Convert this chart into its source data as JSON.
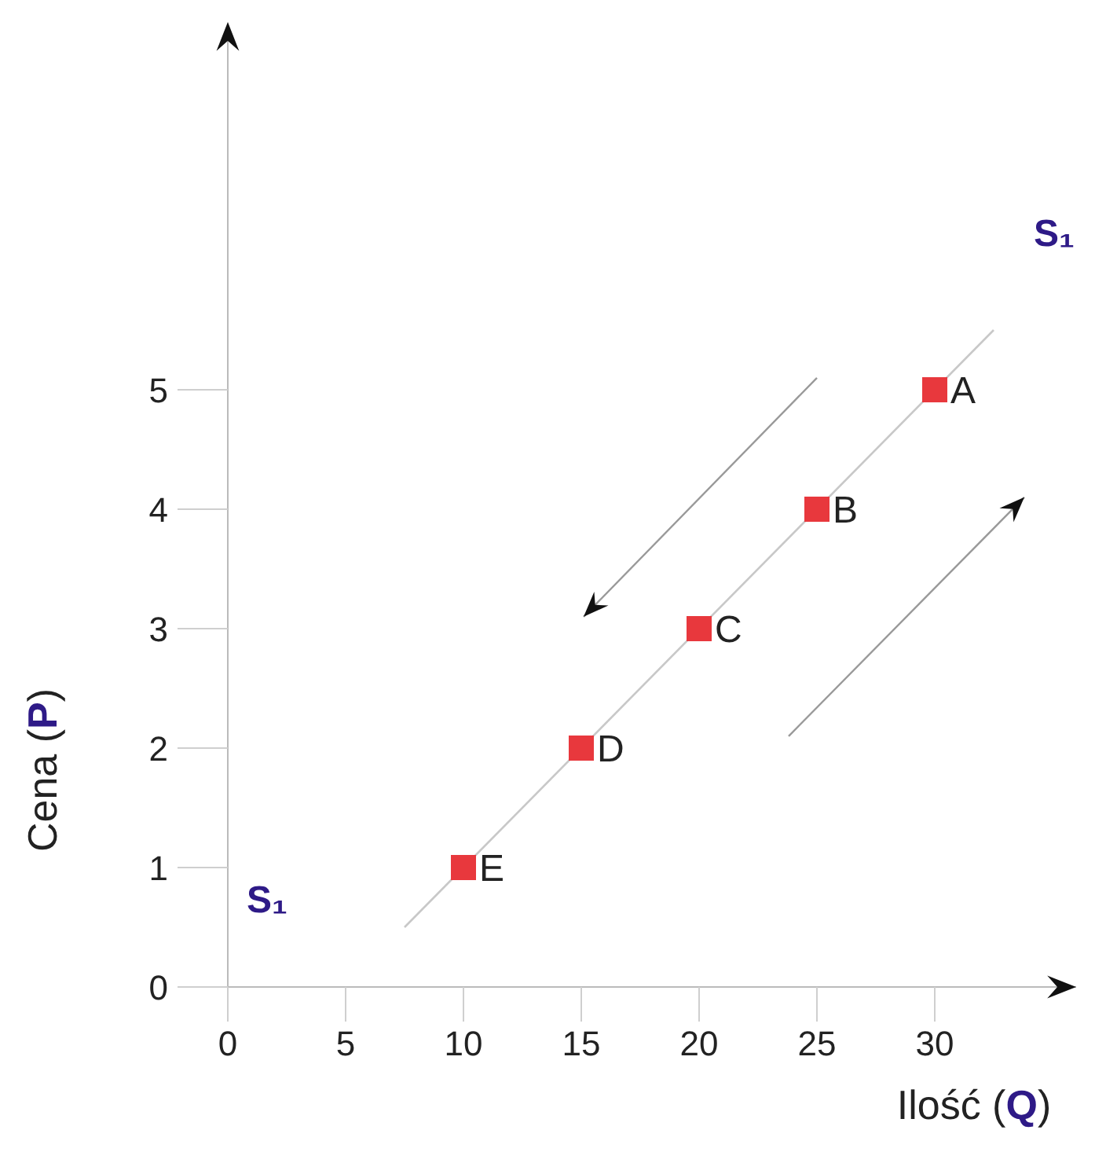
{
  "chart_data": {
    "type": "scatter",
    "xlabel": "Ilość (Q)",
    "ylabel": "Cena (P)",
    "xlim": [
      0,
      36
    ],
    "ylim": [
      0,
      8
    ],
    "xticks": [
      0,
      5,
      10,
      15,
      20,
      25,
      30
    ],
    "yticks": [
      0,
      1,
      2,
      3,
      4,
      5
    ],
    "grid": false,
    "marker": "square",
    "series": [
      {
        "type": "line",
        "color": "#c8c8c8",
        "x": [
          7.5,
          32.5
        ],
        "values": [
          0.5,
          5.5
        ],
        "marker": "none"
      },
      {
        "color": "#e8383d",
        "x": [
          30,
          25,
          20,
          15,
          10
        ],
        "values": [
          5,
          4,
          3,
          2,
          1
        ]
      }
    ],
    "annotations": [
      {
        "text": "A",
        "x": 30,
        "y": 5
      },
      {
        "text": "B",
        "x": 25,
        "y": 4
      },
      {
        "text": "C",
        "x": 20,
        "y": 3
      },
      {
        "text": "D",
        "x": 15,
        "y": 2
      },
      {
        "text": "E",
        "x": 10,
        "y": 1
      },
      "S₁",
      "S₁"
    ]
  }
}
